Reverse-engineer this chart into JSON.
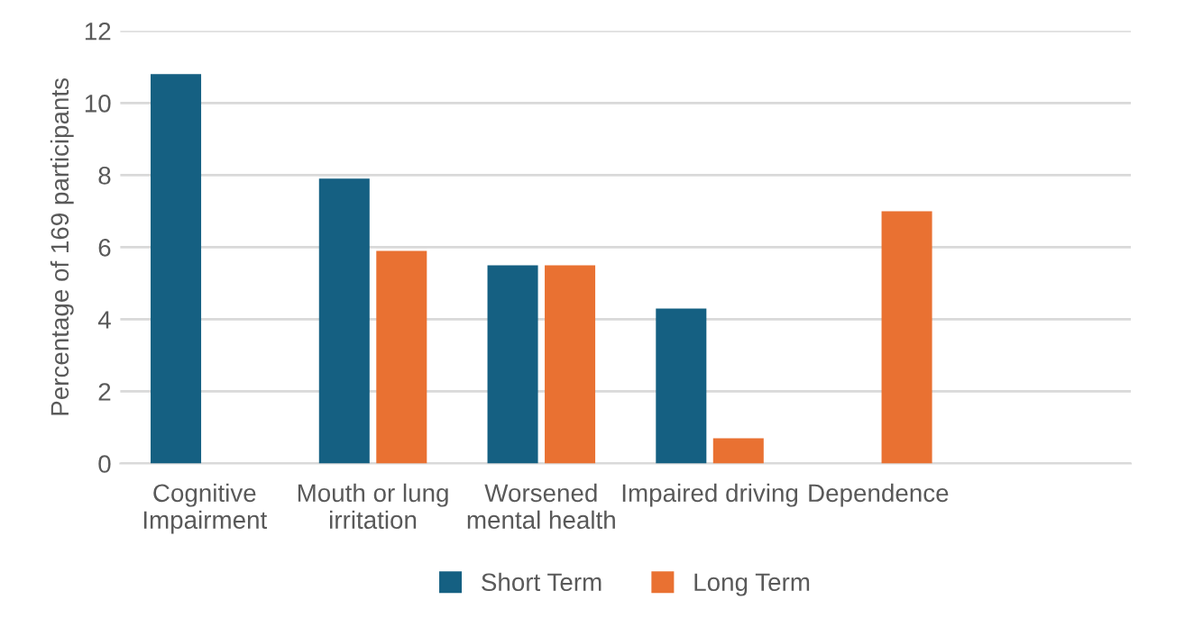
{
  "chart_data": {
    "type": "bar",
    "ylabel": "Percentage of 169 participants",
    "categories": [
      "Cognitive\nImpairment",
      "Mouth or lung\nirritation",
      "Worsened\nmental health",
      "Impaired driving",
      "Dependence",
      null
    ],
    "series": [
      {
        "name": "Short Term",
        "color": "#156082",
        "values": [
          10.8,
          7.9,
          5.5,
          4.3,
          null,
          null
        ]
      },
      {
        "name": "Long Term",
        "color": "#e97132",
        "values": [
          null,
          5.9,
          5.5,
          0.7,
          7.0,
          null
        ]
      }
    ],
    "ylim": [
      0,
      12
    ],
    "yticks": [
      0,
      2,
      4,
      6,
      8,
      10,
      12
    ],
    "grid": "y",
    "legend": "bottom"
  }
}
